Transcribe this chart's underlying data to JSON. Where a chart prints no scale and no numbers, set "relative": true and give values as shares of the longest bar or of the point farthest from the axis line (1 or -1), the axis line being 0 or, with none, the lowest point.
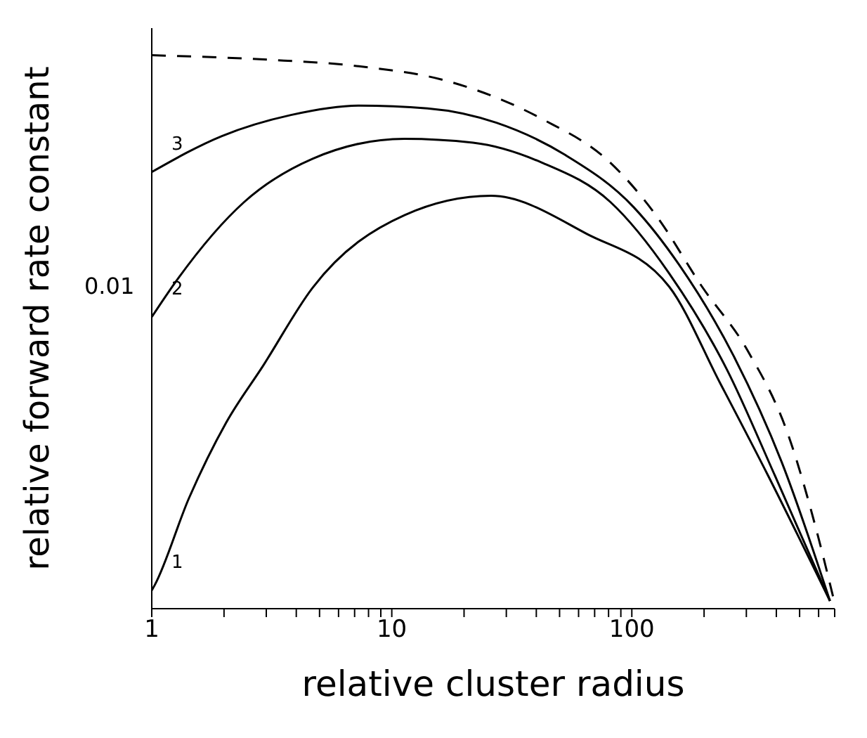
{
  "chart_data": {
    "type": "line",
    "xlabel": "relative cluster radius",
    "ylabel": "relative forward rate constant",
    "log": "x",
    "relative": true,
    "marker": "none",
    "xlim": [
      1,
      700
    ],
    "xticks": [
      1,
      {
        "value": 2,
        "label": null
      },
      {
        "value": 3,
        "label": null
      },
      {
        "value": 4,
        "label": null
      },
      {
        "value": 5,
        "label": null
      },
      {
        "value": 6,
        "label": null
      },
      {
        "value": 7,
        "label": null
      },
      {
        "value": 8,
        "label": null
      },
      {
        "value": 9,
        "label": null
      },
      10,
      {
        "value": 20,
        "label": null
      },
      {
        "value": 30,
        "label": null
      },
      {
        "value": 40,
        "label": null
      },
      {
        "value": 50,
        "label": null
      },
      {
        "value": 60,
        "label": null
      },
      {
        "value": 70,
        "label": null
      },
      {
        "value": 80,
        "label": null
      },
      {
        "value": 90,
        "label": null
      },
      100,
      {
        "value": 200,
        "label": null
      },
      {
        "value": 300,
        "label": null
      },
      {
        "value": 400,
        "label": null
      },
      {
        "value": 500,
        "label": null
      },
      {
        "value": 600,
        "label": null
      },
      {
        "value": 700,
        "label": null
      }
    ],
    "annotations": [
      "0.01"
    ],
    "series": [
      {
        "color": "#000000",
        "line_style": "dashed",
        "x": [
          1,
          3.03,
          7.3,
          17.5,
          42.2,
          81.3,
          126,
          196,
          303,
          450,
          585,
          690
        ],
        "values": [
          1,
          0.992,
          0.98,
          0.952,
          0.885,
          0.806,
          0.711,
          0.582,
          0.467,
          0.312,
          0.145,
          0.021
        ]
      },
      {
        "name": "3",
        "color": "#000000",
        "line_style": "solid",
        "x": [
          1,
          1.96,
          3.8,
          7.3,
          14.1,
          27.3,
          52.7,
          102,
          157,
          266,
          421,
          669
        ],
        "values": [
          0.789,
          0.854,
          0.892,
          0.909,
          0.904,
          0.878,
          0.82,
          0.725,
          0.622,
          0.456,
          0.265,
          0.014
        ]
      },
      {
        "name": "2",
        "color": "#000000",
        "line_style": "solid",
        "x": [
          1,
          1.26,
          2.43,
          4.68,
          11.3,
          21.8,
          42.2,
          81.3,
          143,
          249,
          394,
          669
        ],
        "values": [
          0.527,
          0.591,
          0.735,
          0.813,
          0.849,
          0.842,
          0.806,
          0.735,
          0.606,
          0.432,
          0.241,
          0.014
        ]
      },
      {
        "name": "1",
        "color": "#000000",
        "line_style": "solid",
        "x": [
          1,
          1.03,
          1.43,
          2.04,
          2.91,
          4.68,
          11.3,
          25.9,
          65,
          143,
          233,
          369,
          669
        ],
        "values": [
          0.033,
          0.043,
          0.2,
          0.336,
          0.439,
          0.58,
          0.711,
          0.746,
          0.677,
          0.582,
          0.408,
          0.241,
          0.014
        ]
      }
    ]
  }
}
